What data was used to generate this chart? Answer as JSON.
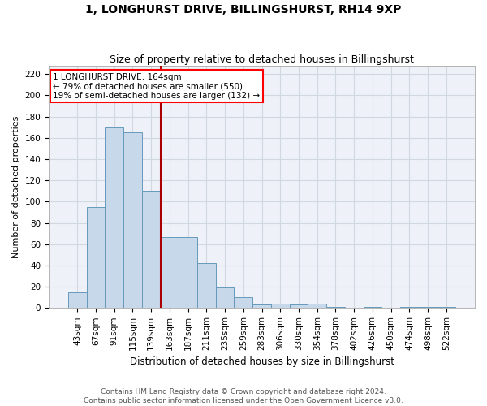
{
  "title": "1, LONGHURST DRIVE, BILLINGSHURST, RH14 9XP",
  "subtitle": "Size of property relative to detached houses in Billingshurst",
  "xlabel": "Distribution of detached houses by size in Billingshurst",
  "ylabel": "Number of detached properties",
  "bar_labels": [
    "43sqm",
    "67sqm",
    "91sqm",
    "115sqm",
    "139sqm",
    "163sqm",
    "187sqm",
    "211sqm",
    "235sqm",
    "259sqm",
    "283sqm",
    "306sqm",
    "330sqm",
    "354sqm",
    "378sqm",
    "402sqm",
    "426sqm",
    "450sqm",
    "474sqm",
    "498sqm",
    "522sqm"
  ],
  "bar_values": [
    15,
    95,
    170,
    165,
    110,
    67,
    67,
    42,
    19,
    10,
    3,
    4,
    3,
    4,
    1,
    0,
    1,
    0,
    1,
    1,
    1
  ],
  "bar_color": "#c8d8eb",
  "bar_edge_color": "#6699bb",
  "grid_color": "#d0d8e0",
  "background_color": "#eef2f8",
  "ylim": [
    0,
    228
  ],
  "yticks": [
    0,
    20,
    40,
    60,
    80,
    100,
    120,
    140,
    160,
    180,
    200,
    220
  ],
  "red_line_index": 5,
  "annotation_line1": "1 LONGHURST DRIVE: 164sqm",
  "annotation_line2": "← 79% of detached houses are smaller (550)",
  "annotation_line3": "19% of semi-detached houses are larger (132) →",
  "footer_line1": "Contains HM Land Registry data © Crown copyright and database right 2024.",
  "footer_line2": "Contains public sector information licensed under the Open Government Licence v3.0.",
  "title_fontsize": 10,
  "subtitle_fontsize": 9,
  "xlabel_fontsize": 8.5,
  "ylabel_fontsize": 8,
  "tick_fontsize": 7.5,
  "annotation_fontsize": 7.5,
  "footer_fontsize": 6.5
}
